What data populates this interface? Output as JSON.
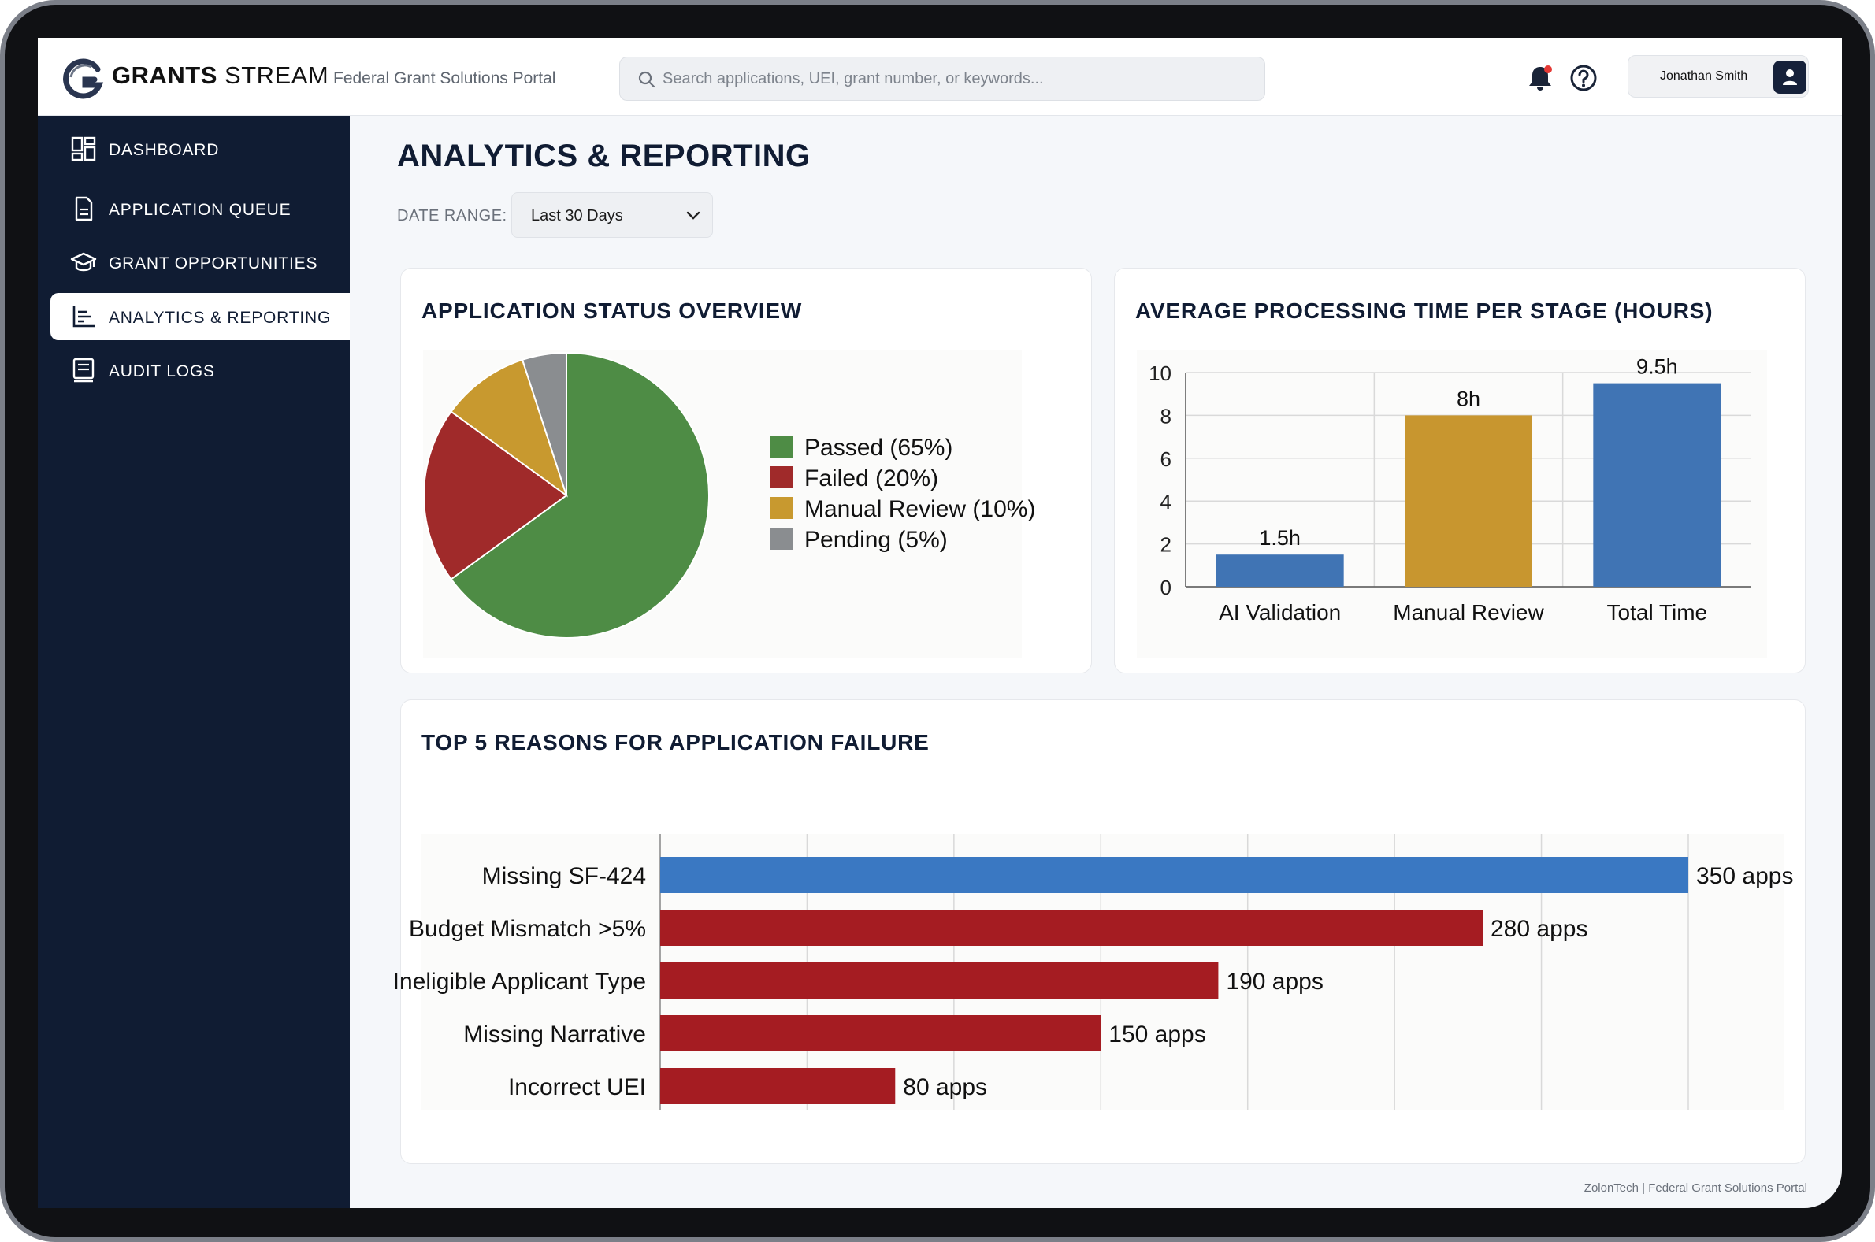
{
  "header": {
    "brand_bold": "GRANTS",
    "brand_light": "STREAM",
    "portal_name": "Federal Grant Solutions Portal",
    "search_placeholder": "Search applications, UEI, grant number, or keywords...",
    "user_name": "Jonathan Smith",
    "icons": [
      "notification-bell-icon",
      "help-icon",
      "user-icon"
    ],
    "accent_color": "#e53935"
  },
  "sidebar": {
    "items": [
      {
        "label": "DASHBOARD",
        "icon": "dashboard-icon"
      },
      {
        "label": "APPLICATION QUEUE",
        "icon": "document-icon"
      },
      {
        "label": "GRANT OPPORTUNITIES",
        "icon": "graduation-cap-icon"
      },
      {
        "label": "ANALYTICS & REPORTING",
        "icon": "bar-chart-icon",
        "active": true
      },
      {
        "label": "AUDIT LOGS",
        "icon": "log-icon"
      }
    ],
    "background_color": "#101c33"
  },
  "main": {
    "title": "ANALYTICS & REPORTING",
    "date_range_label": "DATE RANGE:",
    "date_range_value": "Last 30 Days"
  },
  "chart_data": [
    {
      "type": "pie",
      "title": "APPLICATION STATUS OVERVIEW",
      "categories": [
        "Passed",
        "Failed",
        "Manual Review",
        "Pending"
      ],
      "values": [
        65,
        20,
        10,
        5
      ],
      "legend": [
        "Passed (65%)",
        "Failed (20%)",
        "Manual Review (10%)",
        "Pending (5%)"
      ],
      "colors": [
        "#4e8c45",
        "#a02a2a",
        "#c8992f",
        "#8a8d90"
      ],
      "legend_position": "right"
    },
    {
      "type": "bar",
      "title": "AVERAGE PROCESSING TIME PER STAGE (HOURS)",
      "categories": [
        "AI Validation",
        "Manual Review",
        "Total Time"
      ],
      "values": [
        1.5,
        8,
        9.5
      ],
      "data_labels": [
        "1.5h",
        "8h",
        "9.5h"
      ],
      "colors": [
        "#4074b4",
        "#c8962f",
        "#4074b4"
      ],
      "ylim": [
        0,
        10
      ],
      "yticks": [
        "0",
        "2",
        "4",
        "6",
        "8",
        "10"
      ],
      "grid": true
    },
    {
      "type": "bar",
      "orientation": "horizontal",
      "title": "TOP 5 REASONS FOR APPLICATION FAILURE",
      "categories": [
        "Missing SF-424",
        "Budget Mismatch >5%",
        "Ineligible Applicant Type",
        "Missing Narrative",
        "Incorrect UEI"
      ],
      "values": [
        350,
        280,
        190,
        150,
        80
      ],
      "data_labels": [
        "350 apps",
        "280 apps",
        "190 apps",
        "150 apps",
        "80 apps"
      ],
      "colors": [
        "#3a78c2",
        "#a51c22",
        "#a51c22",
        "#a51c22",
        "#a51c22"
      ],
      "xlim": [
        0,
        350
      ],
      "grid": true
    }
  ],
  "footer": {
    "text": "ZolonTech | Federal Grant Solutions Portal"
  }
}
